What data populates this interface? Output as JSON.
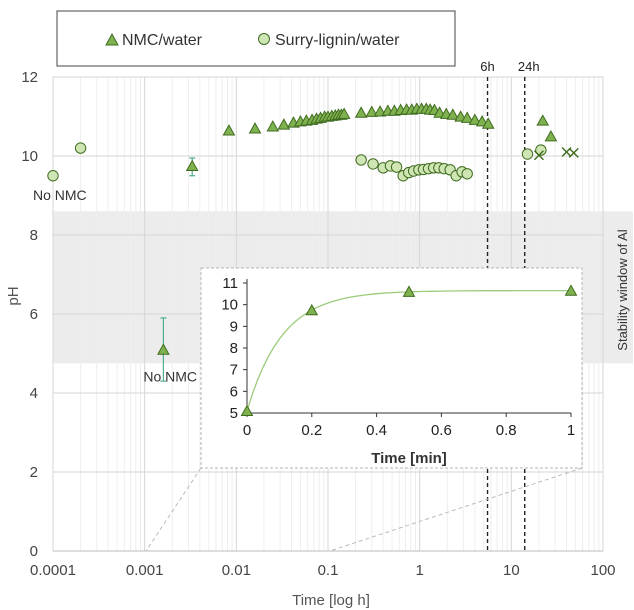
{
  "chart_data": {
    "type": "scatter",
    "xlabel": "Time [log h]",
    "ylabel": "pH",
    "xscale": "log",
    "xlim": [
      0.0001,
      100
    ],
    "ylim": [
      0,
      12
    ],
    "xticks": [
      0.0001,
      0.001,
      0.01,
      0.1,
      1,
      10,
      100
    ],
    "xtick_labels": [
      "0.0001",
      "0.001",
      "0.01",
      "0.1",
      "1",
      "10",
      "100"
    ],
    "yticks": [
      0,
      2,
      4,
      6,
      8,
      10,
      12
    ],
    "grid": true,
    "legend": {
      "placement": "top",
      "entries": [
        "NMC/water",
        "Surry-lignin/water"
      ]
    },
    "colors": {
      "marker_fill": "#7fb24e",
      "marker_fill_light": "#cfe6b4",
      "marker_edge": "#3f6b1f",
      "error_bar": "#4fae8a",
      "band": "#ececec",
      "fit_line": "#9ccb7c"
    },
    "band": {
      "y": [
        4.75,
        8.6
      ],
      "label": "Stability window of Al"
    },
    "vlines": [
      {
        "x": 5.5,
        "label": "6h"
      },
      {
        "x": 14,
        "label": "24h"
      }
    ],
    "annotations": [
      {
        "text": "No NMC",
        "x": 0.0001,
        "y": 9.5
      },
      {
        "text": "No NMC",
        "x": 0.0016,
        "y": 5.1
      }
    ],
    "series": [
      {
        "name": "NMC/water",
        "marker": "triangle",
        "x": [
          0.0016,
          0.0033,
          0.0083,
          0.016,
          0.025,
          0.033,
          0.042,
          0.05,
          0.058,
          0.067,
          0.075,
          0.083,
          0.092,
          0.1,
          0.11,
          0.12,
          0.13,
          0.14,
          0.15,
          0.23,
          0.3,
          0.37,
          0.45,
          0.53,
          0.62,
          0.72,
          0.82,
          0.93,
          1.05,
          1.18,
          1.3,
          1.45,
          1.65,
          1.95,
          2.3,
          2.8,
          3.3,
          4.0,
          4.8,
          5.6,
          22,
          27
        ],
        "y": [
          5.1,
          9.75,
          10.65,
          10.7,
          10.75,
          10.8,
          10.85,
          10.88,
          10.9,
          10.92,
          10.95,
          10.97,
          11.0,
          11.0,
          11.02,
          11.03,
          11.05,
          11.05,
          11.07,
          11.1,
          11.12,
          11.13,
          11.15,
          11.15,
          11.17,
          11.18,
          11.18,
          11.2,
          11.2,
          11.2,
          11.18,
          11.17,
          11.1,
          11.07,
          11.05,
          11.0,
          10.97,
          10.92,
          10.88,
          10.82,
          10.9,
          10.5
        ],
        "error": [
          [
            0.0016,
            4.3,
            5.9
          ],
          [
            0.0033,
            9.5,
            9.95
          ]
        ]
      },
      {
        "name": "Surry-lignin/water",
        "marker": "circle",
        "x": [
          0.0001,
          0.0002,
          0.23,
          0.31,
          0.4,
          0.48,
          0.56,
          0.66,
          0.76,
          0.86,
          0.98,
          1.1,
          1.25,
          1.42,
          1.62,
          1.85,
          2.15,
          2.5,
          2.9,
          3.3,
          15,
          21
        ],
        "y": [
          9.5,
          10.2,
          9.9,
          9.8,
          9.7,
          9.75,
          9.72,
          9.5,
          9.58,
          9.62,
          9.65,
          9.66,
          9.68,
          9.7,
          9.7,
          9.68,
          9.65,
          9.5,
          9.6,
          9.55,
          10.05,
          10.15
        ]
      },
      {
        "name": "",
        "marker": "cross",
        "x": [
          20,
          40,
          48
        ],
        "y": [
          10.02,
          10.1,
          10.08
        ]
      }
    ],
    "inset": {
      "xlabel": "Time [min]",
      "xlim": [
        0,
        1
      ],
      "ylim": [
        5,
        11
      ],
      "xticks": [
        0,
        0.2,
        0.4,
        0.6,
        0.8,
        1
      ],
      "xtick_labels": [
        "0",
        "0.2",
        "0.4",
        "0.6",
        "0.8",
        "1"
      ],
      "yticks": [
        5,
        6,
        7,
        8,
        9,
        10,
        11
      ],
      "points": {
        "x": [
          0,
          0.2,
          0.5,
          1
        ],
        "y": [
          5.1,
          9.75,
          10.6,
          10.65
        ]
      }
    }
  }
}
